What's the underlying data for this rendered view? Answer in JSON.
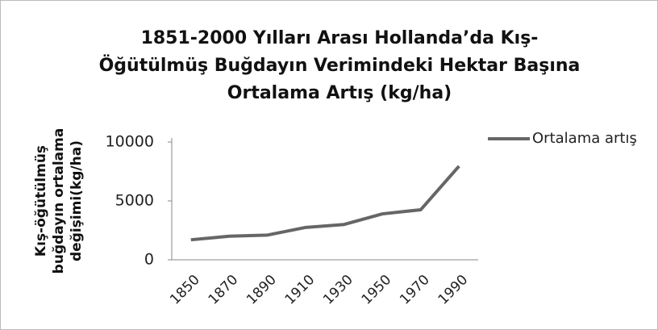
{
  "chart_data": {
    "type": "line",
    "title": "1851-2000 Yılları Arası Hollanda’da  Kış-Öğütülmüş Buğdayın Verimindeki Hektar Başına Ortalama Artış (kg/ha)",
    "y_label": "Kış-öğütülmüş buğdayın ortalama değişimi(kg/ha)",
    "categories": [
      "1850",
      "1870",
      "1890",
      "1910",
      "1930",
      "1950",
      "1970",
      "1990"
    ],
    "series": [
      {
        "name": "Ortalama artış",
        "color": "#666666",
        "values": [
          1700,
          2000,
          2100,
          2750,
          3000,
          3900,
          4250,
          7950
        ]
      }
    ],
    "ylim": [
      0,
      10000
    ],
    "yticks": [
      0,
      5000,
      10000
    ],
    "grid": false,
    "legend": "right"
  }
}
